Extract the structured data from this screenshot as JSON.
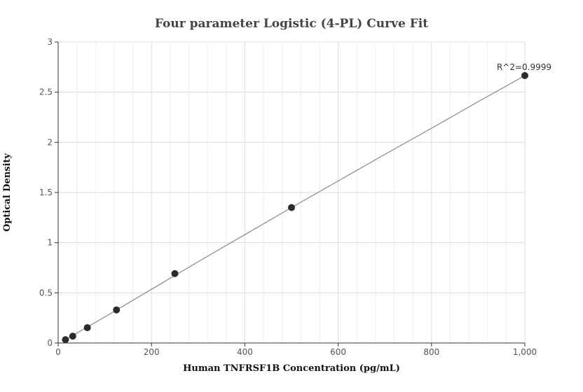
{
  "chart_data": {
    "type": "scatter",
    "title": "Four parameter Logistic (4-PL) Curve Fit",
    "xlabel": "Human TNFRSF1B Concentration (pg/mL)",
    "ylabel": "Optical Density",
    "xlim": [
      0,
      1000
    ],
    "ylim": [
      0,
      3
    ],
    "x_ticks": [
      0,
      200,
      400,
      600,
      800,
      1000
    ],
    "x_tick_labels": [
      "0",
      "200",
      "400",
      "600",
      "800",
      "1,000"
    ],
    "y_ticks": [
      0,
      0.5,
      1,
      1.5,
      2,
      2.5,
      3
    ],
    "y_tick_labels": [
      "0",
      "0.5",
      "1",
      "1.5",
      "2",
      "2.5",
      "3"
    ],
    "grid": true,
    "series": [
      {
        "x": [
          15.6,
          31.25,
          62.5,
          125,
          250,
          500,
          1000
        ],
        "y": [
          0.033,
          0.068,
          0.153,
          0.33,
          0.692,
          1.35,
          2.665
        ]
      }
    ],
    "fit_curve": {
      "x": [
        15.6,
        100,
        200,
        300,
        400,
        500,
        600,
        700,
        800,
        900,
        1000
      ],
      "y": [
        0.033,
        0.26,
        0.535,
        0.81,
        1.08,
        1.35,
        1.615,
        1.88,
        2.14,
        2.405,
        2.665
      ]
    },
    "annotation": "R^2=0.9999"
  }
}
